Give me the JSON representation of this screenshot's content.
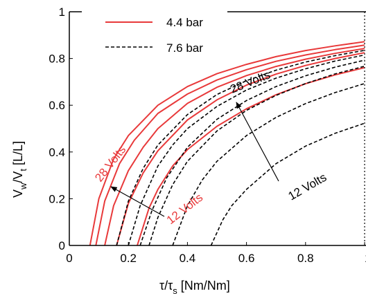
{
  "chart_data": {
    "type": "line",
    "title": "",
    "xlabel_main": "τ/τ",
    "xlabel_sub": "s",
    "xlabel_units": " [Nm/Nm]",
    "ylabel_main": "V",
    "ylabel_sub1": "w",
    "ylabel_mid": "/V",
    "ylabel_sub2": "t",
    "ylabel_units": " [L/L]",
    "xlim": [
      0,
      1
    ],
    "ylim": [
      0,
      1
    ],
    "x_ticks": [
      "0",
      "0.2",
      "0.4",
      "0.6",
      "0.8",
      "1"
    ],
    "y_ticks": [
      "0",
      "0.2",
      "0.4",
      "0.6",
      "0.8",
      "1"
    ],
    "grid": false,
    "legend_position": "top-left",
    "legend": [
      {
        "label": "4.4 bar",
        "color": "#e8393a",
        "dash": "solid"
      },
      {
        "label": "7.6 bar",
        "color": "#000000",
        "dash": "dashed"
      }
    ],
    "series": [
      {
        "name": "4.4 bar",
        "color": "#e8393a",
        "dash": "solid",
        "curves": [
          {
            "x": [
              0.07,
              0.1,
              0.15,
              0.2,
              0.3,
              0.4,
              0.5,
              0.6,
              0.7,
              0.8,
              0.9,
              1.0
            ],
            "y": [
              0.0,
              0.2,
              0.37,
              0.47,
              0.6,
              0.68,
              0.735,
              0.775,
              0.808,
              0.834,
              0.854,
              0.872
            ]
          },
          {
            "x": [
              0.09,
              0.12,
              0.17,
              0.22,
              0.3,
              0.4,
              0.5,
              0.6,
              0.7,
              0.8,
              0.9,
              1.0
            ],
            "y": [
              0.0,
              0.19,
              0.35,
              0.45,
              0.565,
              0.648,
              0.708,
              0.752,
              0.788,
              0.815,
              0.838,
              0.857
            ]
          },
          {
            "x": [
              0.12,
              0.15,
              0.2,
              0.25,
              0.3,
              0.4,
              0.5,
              0.6,
              0.7,
              0.8,
              0.9,
              1.0
            ],
            "y": [
              0.0,
              0.17,
              0.32,
              0.42,
              0.5,
              0.608,
              0.677,
              0.727,
              0.766,
              0.797,
              0.822,
              0.843
            ]
          },
          {
            "x": [
              0.16,
              0.2,
              0.25,
              0.3,
              0.4,
              0.5,
              0.6,
              0.7,
              0.8,
              0.9,
              1.0
            ],
            "y": [
              0.0,
              0.18,
              0.31,
              0.405,
              0.537,
              0.623,
              0.686,
              0.733,
              0.77,
              0.8,
              0.825
            ]
          },
          {
            "x": [
              0.23,
              0.27,
              0.3,
              0.35,
              0.4,
              0.5,
              0.6,
              0.7,
              0.8,
              0.9,
              1.0
            ],
            "y": [
              0.0,
              0.16,
              0.24,
              0.34,
              0.41,
              0.51,
              0.585,
              0.645,
              0.692,
              0.73,
              0.761
            ]
          }
        ]
      },
      {
        "name": "7.6 bar",
        "color": "#000000",
        "dash": "dashed",
        "curves": [
          {
            "x": [
              0.16,
              0.2,
              0.25,
              0.3,
              0.4,
              0.5,
              0.6,
              0.7,
              0.8,
              0.9,
              1.0
            ],
            "y": [
              0.0,
              0.19,
              0.33,
              0.43,
              0.56,
              0.646,
              0.705,
              0.75,
              0.785,
              0.812,
              0.835
            ]
          },
          {
            "x": [
              0.2,
              0.24,
              0.3,
              0.35,
              0.4,
              0.5,
              0.6,
              0.7,
              0.8,
              0.9,
              1.0
            ],
            "y": [
              0.0,
              0.17,
              0.34,
              0.43,
              0.5,
              0.595,
              0.665,
              0.716,
              0.756,
              0.789,
              0.815
            ]
          },
          {
            "x": [
              0.24,
              0.28,
              0.33,
              0.4,
              0.5,
              0.6,
              0.7,
              0.8,
              0.9,
              1.0
            ],
            "y": [
              0.0,
              0.15,
              0.29,
              0.42,
              0.54,
              0.62,
              0.68,
              0.726,
              0.763,
              0.793
            ]
          },
          {
            "x": [
              0.27,
              0.3,
              0.35,
              0.4,
              0.5,
              0.6,
              0.7,
              0.8,
              0.9,
              1.0
            ],
            "y": [
              0.0,
              0.12,
              0.26,
              0.36,
              0.49,
              0.578,
              0.642,
              0.693,
              0.734,
              0.767
            ]
          },
          {
            "x": [
              0.35,
              0.4,
              0.45,
              0.5,
              0.6,
              0.7,
              0.8,
              0.9,
              1.0
            ],
            "y": [
              0.0,
              0.17,
              0.28,
              0.36,
              0.47,
              0.548,
              0.607,
              0.654,
              0.693
            ]
          },
          {
            "x": [
              0.48,
              0.52,
              0.55,
              0.6,
              0.7,
              0.8,
              0.9,
              1.0
            ],
            "y": [
              0.0,
              0.11,
              0.17,
              0.24,
              0.35,
              0.425,
              0.48,
              0.523
            ]
          }
        ]
      }
    ],
    "annotations": [
      {
        "text": "28 Volts",
        "color": "#e8393a"
      },
      {
        "text": "12 Volts",
        "color": "#e8393a"
      },
      {
        "text": "28 Volts",
        "color": "#000000"
      },
      {
        "text": "12 Volts",
        "color": "#000000"
      }
    ]
  }
}
